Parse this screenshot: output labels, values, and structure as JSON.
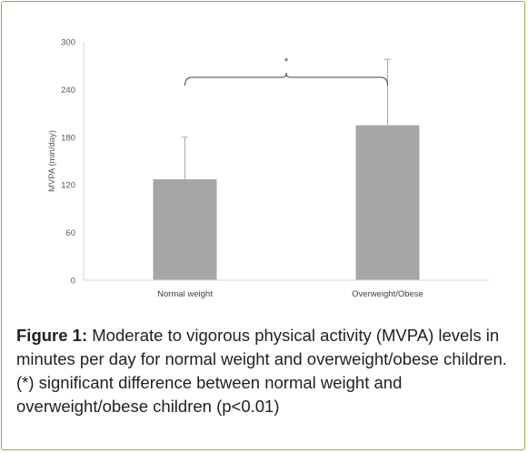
{
  "chart_data": {
    "type": "bar",
    "categories": [
      "Normal weight",
      "Overweight/Obese"
    ],
    "series": [
      {
        "values": [
          127,
          195
        ],
        "error_upper": [
          180,
          278
        ]
      }
    ],
    "title": "",
    "xlabel": "",
    "ylabel": "MVPA (min/day)",
    "ylim": [
      0,
      300
    ],
    "yticks": [
      0,
      60,
      120,
      180,
      240,
      300
    ],
    "grid": false,
    "legend": "none",
    "bar_color": "#a6a6a6",
    "error_color": "#a6a6a6",
    "significance": {
      "between": [
        "Normal weight",
        "Overweight/Obese"
      ],
      "label": "*"
    }
  },
  "caption": {
    "label": "Figure 1:",
    "text": " Moderate to vigorous physical activity (MVPA) levels in minutes per day for normal weight and overweight/obese children. (*) significant difference between normal weight and overweight/obese children (p<0.01)"
  },
  "colors": {
    "border": "#8db33a",
    "axis": "#d9d9d9",
    "tick_text": "#595959"
  }
}
